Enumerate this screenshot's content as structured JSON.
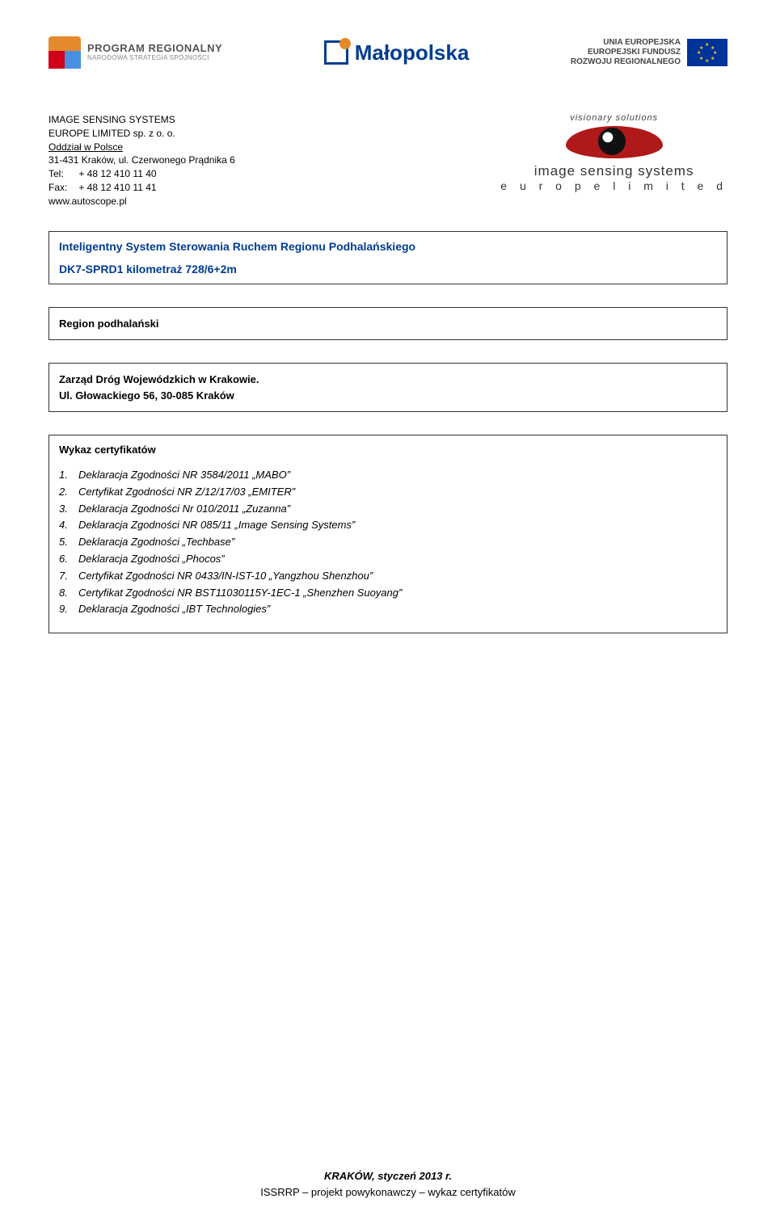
{
  "header": {
    "left": {
      "line1": "PROGRAM REGIONALNY",
      "line2": "NARODOWA STRATEGIA SPÓJNOŚCI"
    },
    "center": "Małopolska",
    "right": {
      "line1": "UNIA EUROPEJSKA",
      "line2": "EUROPEJSKI FUNDUSZ",
      "line3": "ROZWOJU REGIONALNEGO"
    }
  },
  "company": {
    "name1": "IMAGE SENSING SYSTEMS",
    "name2": "EUROPE LIMITED sp. z o. o.",
    "branch": "Oddział w Polsce",
    "address": "31-431 Kraków, ul. Czerwonego Prądnika 6",
    "tel_label": "Tel:",
    "tel": "+ 48 12 410 11 40",
    "fax_label": "Fax:",
    "fax": "+ 48 12 410 11 41",
    "web": "www.autoscope.pl",
    "logo_tag": "visionary solutions",
    "logo_name1": "image sensing systems",
    "logo_name2": "e u r o p e     l i m i t e d"
  },
  "box1": {
    "title": "Inteligentny System Sterowania Ruchem Regionu Podhalańskiego",
    "sub": "DK7-SPRD1 kilometraż 728/6+2m"
  },
  "box2": {
    "text": "Region podhalański"
  },
  "box3": {
    "line1": "Zarząd Dróg Wojewódzkich w Krakowie.",
    "line2": "Ul. Głowackiego 56, 30-085 Kraków"
  },
  "box4": {
    "title": "Wykaz certyfikatów",
    "items": [
      "Deklaracja Zgodności NR 3584/2011 „MABO”",
      "Certyfikat Zgodności NR Z/12/17/03 „EMITER”",
      "Deklaracja Zgodności Nr 010/2011 „Zuzanna”",
      "Deklaracja Zgodności NR 085/11 „Image Sensing Systems”",
      "Deklaracja Zgodności „Techbase”",
      "Deklaracja Zgodności „Phocos”",
      "Certyfikat Zgodności NR 0433/IN-IST-10 „Yangzhou Shenzhou”",
      "Certyfikat Zgodności NR BST11030115Y-1EC-1 „Shenzhen Suoyang”",
      "Deklaracja Zgodności „IBT Technologies”"
    ]
  },
  "footer": {
    "line1": "KRAKÓW, styczeń 2013 r.",
    "line2": "ISSRRP – projekt powykonawczy – wykaz certyfikatów"
  }
}
